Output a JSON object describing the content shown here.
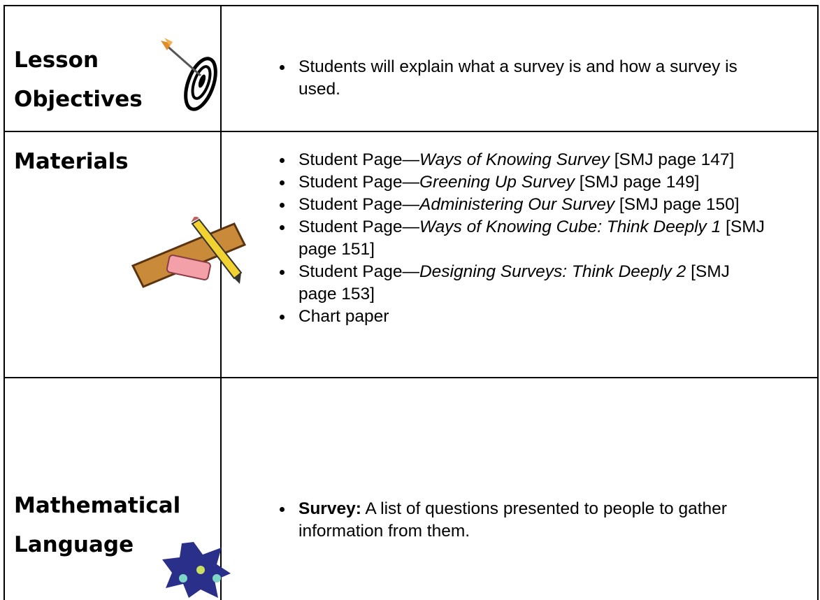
{
  "rows": [
    {
      "heading": [
        "Lesson",
        "Objectives"
      ],
      "items": [
        [
          {
            "text": "Students will explain what a survey is and how a survey is used."
          }
        ]
      ]
    },
    {
      "heading": [
        "Materials"
      ],
      "items": [
        [
          {
            "text": "Student Page—"
          },
          {
            "text": "Ways of Knowing Survey",
            "style": "italic"
          },
          {
            "text": " [SMJ page 147]"
          }
        ],
        [
          {
            "text": "Student Page—"
          },
          {
            "text": "Greening Up Survey",
            "style": "italic"
          },
          {
            "text": " [SMJ page 149]"
          }
        ],
        [
          {
            "text": "Student Page—"
          },
          {
            "text": "Administering Our Survey",
            "style": "italic"
          },
          {
            "text": " [SMJ page 150]"
          }
        ],
        [
          {
            "text": "Student Page—"
          },
          {
            "text": "Ways of Knowing Cube: Think Deeply 1",
            "style": "italic"
          },
          {
            "text": " [SMJ page 151]"
          }
        ],
        [
          {
            "text": "Student Page—"
          },
          {
            "text": "Designing Surveys: Think Deeply 2",
            "style": "italic"
          },
          {
            "text": " [SMJ page 153]"
          }
        ],
        [
          {
            "text": "Chart paper"
          }
        ]
      ]
    },
    {
      "heading": [
        "Mathematical",
        "Language"
      ],
      "items": [
        [
          {
            "text": "Survey:",
            "style": "bold"
          },
          {
            "text": " A list of questions presented to people to gather information from them."
          }
        ]
      ]
    }
  ]
}
